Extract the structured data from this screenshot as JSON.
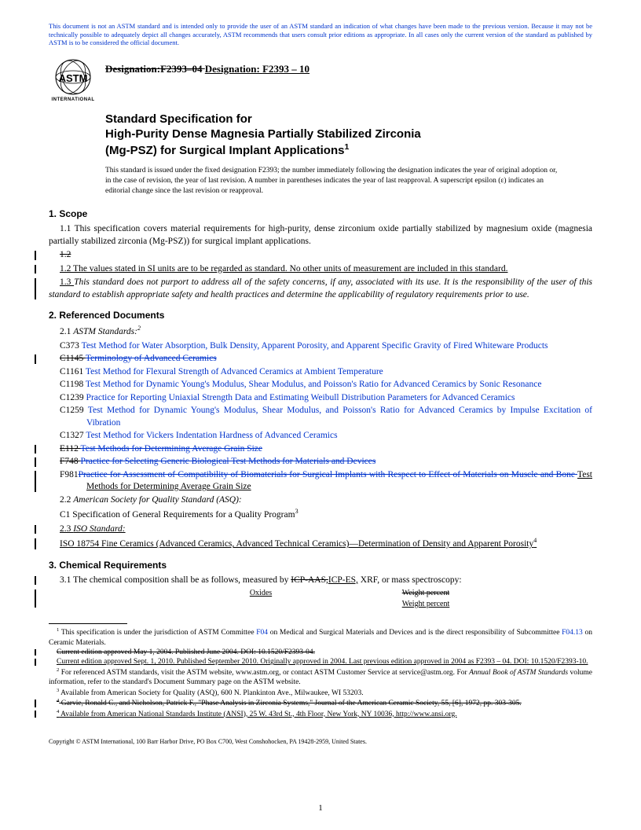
{
  "disclaimer": "This document is not an ASTM standard and is intended only to provide the user of an ASTM standard an indication of what changes have been made to the previous version. Because it may not be technically possible to adequately depict all changes accurately, ASTM recommends that users consult prior editions as appropriate. In all cases only the current version of the standard as published by ASTM is to be considered the official document.",
  "logo": {
    "brand1": "ASTM",
    "brand2": "INTERNATIONAL"
  },
  "designation": {
    "label_struck": "Designation:",
    "old": "F2393–04 ",
    "label_new": "Designation: ",
    "new": "F2393 – 10"
  },
  "title": {
    "line1": "Standard Specification for",
    "line2": "High-Purity Dense Magnesia Partially Stabilized Zirconia",
    "line3": "(Mg-PSZ) for Surgical Implant Applications",
    "sup": "1"
  },
  "issuance": "This standard is issued under the fixed designation F2393; the number immediately following the designation indicates the year of original adoption or, in the case of revision, the year of last revision. A number in parentheses indicates the year of last reapproval. A superscript epsilon (ε) indicates an editorial change since the last revision or reapproval.",
  "s1": {
    "head": "1. Scope",
    "p1": "1.1 This specification covers material requirements for high-purity, dense zirconium oxide partially stabilized by magnesium oxide (magnesia partially stabilized zirconia (Mg-PSZ)) for surgical implant applications.",
    "p_struck": "1.2",
    "p2": "1.2 The values stated in SI units are to be regarded as standard. No other units of measurement are included in this standard.",
    "p3a": "1.3 ",
    "p3b": "This standard does not purport to address all of the safety concerns, if any, associated with its use. It is the responsibility of the user of this standard to establish appropriate safety and health practices and determine the applicability of regulatory requirements prior to use."
  },
  "s2": {
    "head": "2. Referenced Documents",
    "p21a": "2.1 ",
    "p21b": "ASTM Standards:",
    "p21c": "2",
    "refs": [
      {
        "code": "C373",
        "txt": "Test Method for Water Absorption, Bulk Density, Apparent Porosity, and Apparent Specific Gravity of Fired Whiteware Products",
        "struck": false,
        "und": false
      },
      {
        "code": "C1145",
        "txt": "Terminology of Advanced Ceramics",
        "struck": true,
        "und": false
      },
      {
        "code": "C1161",
        "txt": "Test Method for Flexural Strength of Advanced Ceramics at Ambient Temperature",
        "struck": false,
        "und": false
      },
      {
        "code": "C1198",
        "txt": "Test Method for Dynamic Young's Modulus, Shear Modulus, and Poisson's Ratio for Advanced Ceramics by Sonic Resonance",
        "struck": false,
        "und": false
      },
      {
        "code": "C1239",
        "txt": "Practice for Reporting Uniaxial Strength Data and Estimating Weibull Distribution Parameters for Advanced Ceramics",
        "struck": false,
        "und": false
      },
      {
        "code": "C1259",
        "txt": "Test Method for Dynamic Young's Modulus, Shear Modulus, and Poisson's Ratio for Advanced Ceramics by Impulse Excitation of Vibration",
        "struck": false,
        "und": false
      },
      {
        "code": "C1327",
        "txt": "Test Method for Vickers Indentation Hardness of Advanced Ceramics",
        "struck": false,
        "und": false
      },
      {
        "code": "E112",
        "txt": "Test Methods for Determining Average Grain Size",
        "struck": true,
        "und": false
      },
      {
        "code": "F748",
        "txt": "Practice for Selecting Generic Biological Test Methods for Materials and Devices",
        "struck": true,
        "und": false
      }
    ],
    "f981_code": "F981",
    "f981_struck": "Practice for Assessment of Compatibility of Biomaterials for Surgical Implants with Respect to Effect of Materials on Muscle and Bone ",
    "f981_new": "Test Methods for Determining Average Grain Size",
    "p22a": "2.2   ",
    "p22b": "American Society for Quality Standard (ASQ):",
    "c1": "C1  Specification of General Requirements for a Quality Program",
    "c1sup": "3",
    "p23a": "2.3 ",
    "p23b": "ISO Standard:",
    "iso": "ISO 18754 Fine Ceramics (Advanced Ceramics, Advanced Technical Ceramics)—Determination of Density and Apparent Porosity",
    "isosup": "4"
  },
  "s3": {
    "head": "3. Chemical Requirements",
    "p1a": "3.1 The chemical composition shall be as follows, measured by ",
    "struck": "ICP-AAS,",
    "new": "ICP-ES,",
    "p1b": " XRF, or mass spectroscopy:",
    "tbl_ox": "Oxides",
    "tbl_wp_struck": "Weight percent",
    "tbl_wp_new": "Weight percent"
  },
  "footnotes": {
    "f1a": " This specification is under the jurisdiction of ASTM Committee ",
    "f1link1": "F04",
    "f1b": " on Medical and Surgical Materials and Devices and is the direct responsibility of Subcommittee ",
    "f1link2": "F04.13",
    "f1c": " on Ceramic Materials.",
    "f1struck": "Current edition approved May 1, 2004. Published June 2004. DOI: 10.1520/F2393-04.",
    "f1new_a": "Current edition approved Sept. 1, 2010. Published September 2010. Originally approved in 2004. Last previous edition approved in 2004 as F2393 – 04. DOI: ",
    "f1new_b": "10.1520/F2393-10.",
    "f2a": " For referenced ASTM standards, visit the ASTM website, www.astm.org, or contact ASTM Customer Service at service@astm.org. For ",
    "f2b": "Annual Book of ASTM Standards",
    "f2c": " volume information, refer to the standard's Document Summary page on the ASTM website.",
    "f3": " Available from American Society for Quality (ASQ), 600 N. Plankinton Ave., Milwaukee, WI 53203.",
    "f4struck": " Garvie, Ronald C., and Nicholson, Patrick F., \"Phase Analysis in Zirconia Systems,\" Journal of the American Ceramic Society, 55, [6], 1972, pp. 303-305.",
    "f4new": " Available from American National Standards Institute (ANSI), 25 W. 43rd St., 4th Floor, New York, NY 10036, http://www.ansi.org."
  },
  "copyright": "Copyright © ASTM International, 100 Barr Harbor Drive, PO Box C700, West Conshohocken, PA 19428-2959, United States.",
  "pagenum": "1"
}
